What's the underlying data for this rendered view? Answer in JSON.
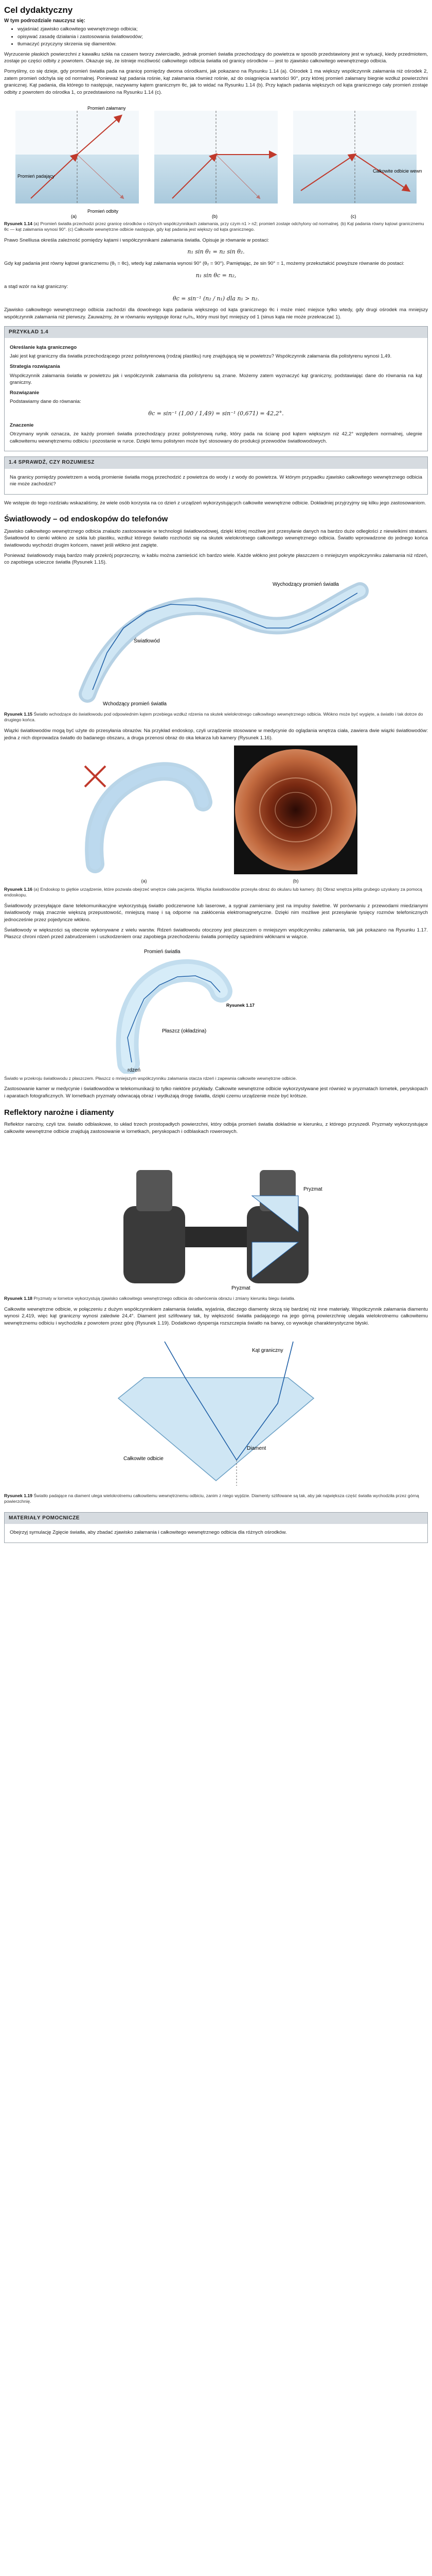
{
  "header": {
    "title": "Cel dydaktyczny",
    "goals_intro": "W tym podrozdziale nauczysz się:",
    "goals": [
      "wyjaśniać zjawisko całkowitego wewnętrznego odbicia;",
      "opisywać zasadę działania i zastosowania światłowodów;",
      "tłumaczyć przyczyny skrzenia się diamentów."
    ]
  },
  "intro_paragraphs": [
    "Wyrzucenie płaskich powierzchni z kawałku szkła na czasem tworzy zwierciadło, jednak promień światła przechodzący do powietrza w sposób przedstawiony jest w sytuacji, kiedy przedmiotem, zostaje po części odbity z powrotem. Okazuje się, że istnieje możliwość całkowitego odbicia światła od granicy ośrodków — jest to zjawisko całkowitego wewnętrznego odbicia.",
    "Pomyślmy, co się dzieje, gdy promień światła pada na granicę pomiędzy dwoma ośrodkami, jak pokazano na Rysunku 1.14 (a). Ośrodek 1 ma większy współczynnik załamania niż ośrodek 2, zatem promień odchyla się od normalnej. Ponieważ kąt padania rośnie, kąt załamania również rośnie, aż do osiągnięcia wartości 90°, przy której promień załamany biegnie wzdłuż powierzchni granicznej. Kąt padania, dla którego to następuje, nazywamy kątem granicznym θc, jak to widać na Rysunku 1.14 (b). Przy kątach padania większych od kąta granicznego cały promień zostaje odbity z powrotem do ośrodka 1, co przedstawiono na Rysunku 1.14 (c)."
  ],
  "figure1": {
    "labels": {
      "refracted": "Promień załamany",
      "incident": "Promień padający",
      "reflected": "Promień odbity",
      "total": "Całkowite odbicie wewnętrzne"
    },
    "sub": [
      "(a)",
      "(b)",
      "(c)"
    ],
    "caption_bold": "Rysunek 1.14",
    "caption": " (a) Promień światła przechodzi przez granicę ośrodków o różnych współczynnikach załamania, przy czym n1 > n2; promień zostaje odchylony od normalnej. (b) Kąt padania równy kątowi granicznemu θc — kąt załamania wynosi 90°. (c) Całkowite wewnętrzne odbicie następuje, gdy kąt padania jest większy od kąta granicznego."
  },
  "para_after_fig1": "Prawo Snelliusa określa zależność pomiędzy kątami i współczynnikami załamania światła. Opisuje je równanie w postaci:",
  "eq1": "n₁ sin θ₁ = n₂ sin θ₂.",
  "para_eq2_intro": "Gdy kąt padania jest równy kątowi granicznemu (θ₁ = θc), wtedy kąt załamania wynosi 90° (θ₂ = 90°). Pamiętając, że sin 90° = 1, możemy przekształcić powyższe równanie do postaci:",
  "eq2": "n₁ sin θc = n₂,",
  "para_eq3_intro": "a stąd wzór na kąt graniczny:",
  "eq3": "θc = sin⁻¹ (n₂ / n₁)   dla n₁ > n₂.",
  "para_after_eq3": "Zjawisko całkowitego wewnętrznego odbicia zachodzi dla dowolnego kąta padania większego od kąta granicznego θc i może mieć miejsce tylko wtedy, gdy drugi ośrodek ma mniejszy współczynnik załamania niż pierwszy. Zauważmy, że w równaniu występuje iloraz n₂/n₁, który musi być mniejszy od 1 (sinus kąta nie może przekraczać 1).",
  "example": {
    "head": "PRZYKŁAD 1.4",
    "title": "Określanie kąta granicznego",
    "question": "Jaki jest kąt graniczny dla światła przechodzącego przez polistyrenową (rodzaj plastiku) rurę znajdującą się w powietrzu? Współczynnik załamania dla polistyrenu wynosi 1,49.",
    "strategy_title": "Strategia rozwiązania",
    "strategy": "Współczynnik załamania światła w powietrzu jak i współczynnik załamania dla polistyrenu są znane. Możemy zatem wyznaczyć kąt graniczny, podstawiając dane do równania na kąt graniczny.",
    "solution_title": "Rozwiązanie",
    "solution_intro": "Podstawiamy dane do równania:",
    "solution_eq": "θc = sin⁻¹ (1,00 / 1,49) = sin⁻¹ (0,671) = 42,2°.",
    "significance_title": "Znaczenie",
    "significance": "Otrzymany wynik oznacza, że każdy promień światła przechodzący przez polistyrenową rurkę, który pada na ścianę pod kątem większym niż 42,2° względem normalnej, ulegnie całkowitemu wewnętrznemu odbiciu i pozostanie w rurce. Dzięki temu polistyren może być stosowany do produkcji przewodów światłowodowych."
  },
  "check": {
    "head": "1.4 SPRAWDŹ, CZY ROZUMIESZ",
    "text": "Na granicy pomiędzy powietrzem a wodą promienie światła mogą przechodzić z powietrza do wody i z wody do powietrza. W którym przypadku zjawisko całkowitego wewnętrznego odbicia nie może zachodzić?"
  },
  "para_before_fiber": "We wstępie do tego rozdziału wskazaliśmy, że wiele osób korzysta na co dzień z urządzeń wykorzystujących całkowite wewnętrzne odbicie. Dokładniej przyjrzyjmy się kilku jego zastosowaniom.",
  "section_fiber": {
    "title": "Światłowody – od endoskopów do telefonów",
    "paragraphs": [
      "Zjawisko całkowitego wewnętrznego odbicia znalazło zastosowanie w technologii światłowodowej, dzięki której możliwe jest przesyłanie danych na bardzo duże odległości z niewielkimi stratami. Światłowód to cienki włókno ze szkła lub plastiku, wzdłuż którego światło rozchodzi się na skutek wielokrotnego całkowitego wewnętrznego odbicia. Światło wprowadzone do jednego końca światłowodu wychodzi drugim końcem, nawet jeśli włókno jest zagięte.",
      "Ponieważ światłowody mają bardzo mały przekrój poprzeczny, w kablu można zamieścić ich bardzo wiele. Każde włókno jest pokryte płaszczem o mniejszym współczynniku załamania niż rdzeń, co zapobiega ucieczce światła (Rysunek 1.15)."
    ],
    "labels": {
      "fiber": "Światłowód",
      "exit": "Wychodzący promień światła",
      "entry": "Wchodzący promień światła"
    },
    "caption_bold": "Rysunek 1.15",
    "caption": " Światło wchodzące do światłowodu pod odpowiednim kątem przebiega wzdłuż rdzenia na skutek wielokrotnego całkowitego wewnętrznego odbicia. Włókno może być wygięte, a światło i tak dotrze do drugiego końca."
  },
  "para_bundle": "Wiązki światłowodów mogą być użyte do przesyłania obrazów. Na przykład endoskop, czyli urządzenie stosowane w medycynie do oglądania wnętrza ciała, zawiera dwie wiązki światłowodów: jedna z nich doprowadza światło do badanego obszaru, a druga przenosi obraz do oka lekarza lub kamery (Rysunek 1.16).",
  "figure2": {
    "sub": [
      "(a)",
      "(b)"
    ],
    "caption_bold": "Rysunek 1.16",
    "caption": " (a) Endoskop to giętkie urządzenie, które pozwala obejrzeć wnętrze ciała pacjenta. Wiązka światłowodów przesyła obraz do okularu lub kamery. (b) Obraz wnętrza jelita grubego uzyskany za pomocą endoskopu."
  },
  "para_fig2_after": [
    "Światłowody przesyłające dane telekomunikacyjne wykorzystują światło podczerwone lub laserowe, a sygnał zamieniany jest na impulsy świetlne. W porównaniu z przewodami miedzianymi światłowody mają znacznie większą przepustowość, mniejszą masę i są odporne na zakłócenia elektromagnetyczne. Dzięki nim możliwe jest przesyłanie tysięcy rozmów telefonicznych jednocześnie przez pojedyncze włókno.",
    "Światłowody w większości są obecnie wykonywane z wielu warstw. Rdzeń światłowodu otoczony jest płaszczem o mniejszym współczynniku załamania, tak jak pokazano na Rysunku 1.17. Płaszcz chroni rdzeń przed zabrudzeniem i uszkodzeniem oraz zapobiega przechodzeniu światła pomiędzy sąsiednimi włóknami w wiązce."
  ],
  "figure3": {
    "labels": {
      "ray": "Promień światła",
      "cladding": "Płaszcz (okładzina)",
      "core": "rdzeń"
    },
    "caption_bold": "Rysunek 1.17",
    "caption": " Światło w przekroju światłowodu z płaszczem. Płaszcz o mniejszym współczynniku załamania otacza rdzeń i zapewnia całkowite wewnętrzne odbicie."
  },
  "para_fig3_after": "Zastosowanie kamer w medycynie i światłowodów w telekomunikacji to tylko niektóre przykłady. Całkowite wewnętrzne odbicie wykorzystywane jest również w pryzmatach lornetek, peryskopach i aparatach fotograficznych. W lornetkach pryzmaty odwracają obraz i wydłużają drogę światła, dzięki czemu urządzenie może być krótsze.",
  "section_prism": {
    "title": "Reflektory narożne i diamenty",
    "paragraph": "Reflektor narożny, czyli tzw. światło odblaskowe, to układ trzech prostopadłych powierzchni, który odbija promień światła dokładnie w kierunku, z którego przyszedł. Pryzmaty wykorzystujące całkowite wewnętrzne odbicie znajdują zastosowanie w lornetkach, peryskopach i odblaskach rowerowych.",
    "labels": {
      "prism_top": "Pryzmat",
      "prism_bottom": "Pryzmat"
    },
    "caption_bold": "Rysunek 1.18",
    "caption": " Pryzmaty w lornetce wykorzystują zjawisko całkowitego wewnętrznego odbicia do odwrócenia obrazu i zmiany kierunku biegu światła."
  },
  "para_diamond": "Całkowite wewnętrzne odbicie, w połączeniu z dużym współczynnikiem załamania światła, wyjaśnia, dlaczego diamenty skrzą się bardziej niż inne materiały. Współczynnik załamania diamentu wynosi 2,419, więc kąt graniczny wynosi zaledwie 24,4°. Diament jest szlifowany tak, by większość światła padającego na jego górną powierzchnię ulegała wielokrotnemu całkowitemu wewnętrznemu odbiciu i wychodziła z powrotem przez górę (Rysunek 1.19). Dodatkowo dyspersja rozszczepia światło na barwy, co wywołuje charakterystyczne błyski.",
  "figure4": {
    "labels": {
      "critical": "Kąt graniczny",
      "total": "Całkowite odbicie",
      "diamond": "Diament"
    },
    "caption_bold": "Rysunek 1.19",
    "caption": " Światło padające na diament ulega wielokrotnemu całkowitemu wewnętrznemu odbiciu, zanim z niego wyjdzie. Diamenty szlifowane są tak, aby jak największa część światła wychodziła przez górną powierzchnię."
  },
  "footer": {
    "head": "MATERIAŁY POMOCNICZE",
    "text": "Obejrzyj symulację Zgięcie światła, aby zbadać zjawisko załamania i całkowitego wewnętrznego odbicia dla różnych ośrodków."
  }
}
